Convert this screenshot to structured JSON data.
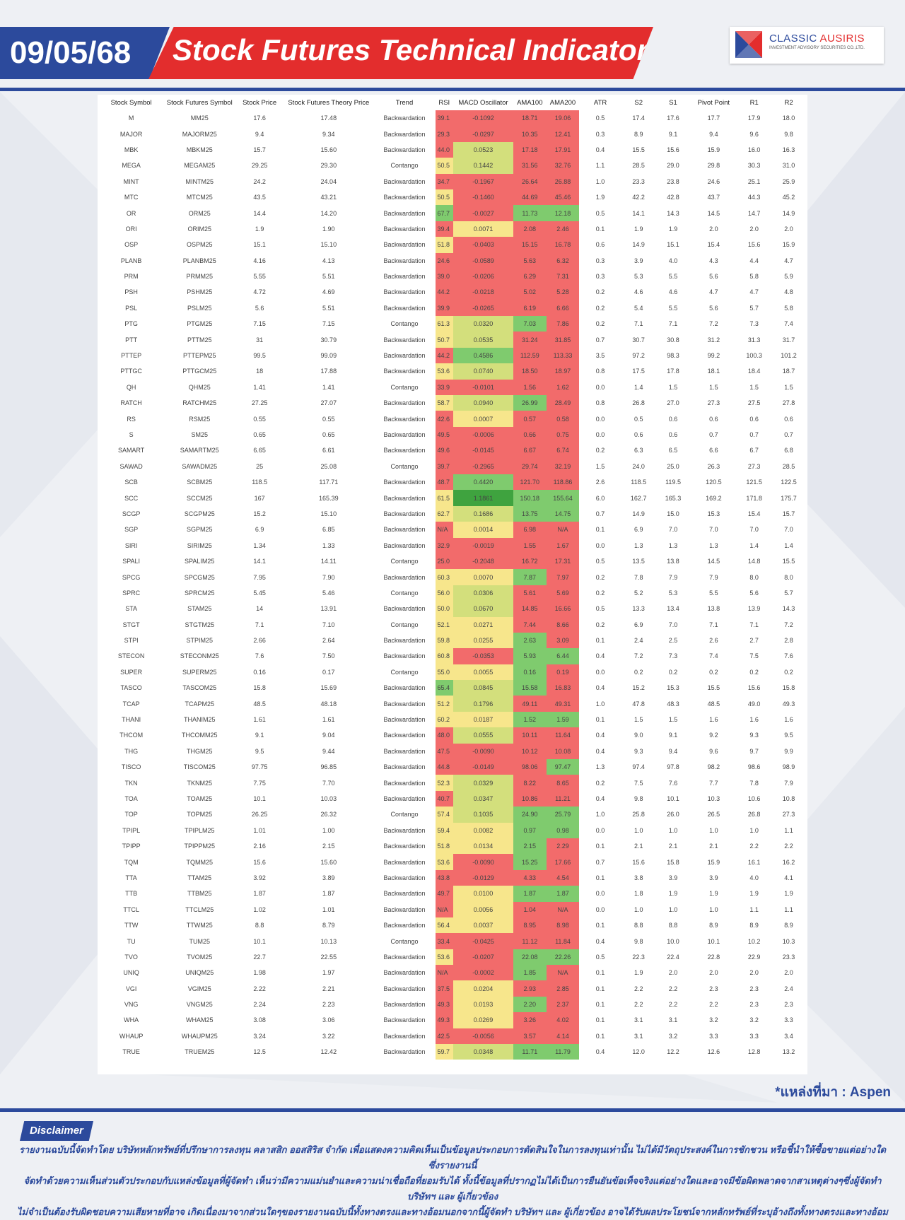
{
  "header": {
    "date": "09/05/68",
    "title": "Stock Futures Technical Indicator",
    "logo_name_a": "CLASSIC ",
    "logo_name_b": "AUSIRIS",
    "logo_sub": "INVESTMENT ADVISORY SECURITIES CO.,LTD."
  },
  "colors": {
    "brand_blue": "#2c4a9c",
    "brand_red": "#e32d2d",
    "cell_red": "#f26b6b",
    "cell_yellow": "#f7e68c",
    "cell_lime": "#d3df7c",
    "cell_green": "#7fcb6e",
    "cell_dark_green": "#3fa33f"
  },
  "table": {
    "columns": [
      "Stock Symbol",
      "Stock Futures Symbol",
      "Stock Price",
      "Stock Futures Theory Price",
      "Trend",
      "RSI",
      "MACD Oscillator",
      "AMA100",
      "AMA200",
      "ATR",
      "S2",
      "S1",
      "Pivot Point",
      "R1",
      "R2"
    ],
    "rows": [
      [
        "M",
        "MM25",
        "17.6",
        "17.48",
        "Backwardation",
        "39.1",
        "-0.1092",
        "18.71",
        "19.06",
        "0.5",
        "17.4",
        "17.6",
        "17.7",
        "17.9",
        "18.0"
      ],
      [
        "MAJOR",
        "MAJORM25",
        "9.4",
        "9.34",
        "Backwardation",
        "29.3",
        "-0.0297",
        "10.35",
        "12.41",
        "0.3",
        "8.9",
        "9.1",
        "9.4",
        "9.6",
        "9.8"
      ],
      [
        "MBK",
        "MBKM25",
        "15.7",
        "15.60",
        "Backwardation",
        "44.0",
        "0.0523",
        "17.18",
        "17.91",
        "0.4",
        "15.5",
        "15.6",
        "15.9",
        "16.0",
        "16.3"
      ],
      [
        "MEGA",
        "MEGAM25",
        "29.25",
        "29.30",
        "Contango",
        "50.5",
        "0.1442",
        "31.56",
        "32.76",
        "1.1",
        "28.5",
        "29.0",
        "29.8",
        "30.3",
        "31.0"
      ],
      [
        "MINT",
        "MINTM25",
        "24.2",
        "24.04",
        "Backwardation",
        "34.7",
        "-0.1967",
        "26.64",
        "26.88",
        "1.0",
        "23.3",
        "23.8",
        "24.6",
        "25.1",
        "25.9"
      ],
      [
        "MTC",
        "MTCM25",
        "43.5",
        "43.21",
        "Backwardation",
        "50.5",
        "-0.1460",
        "44.69",
        "45.46",
        "1.9",
        "42.2",
        "42.8",
        "43.7",
        "44.3",
        "45.2"
      ],
      [
        "OR",
        "ORM25",
        "14.4",
        "14.20",
        "Backwardation",
        "67.7",
        "-0.0027",
        "11.73",
        "12.18",
        "0.5",
        "14.1",
        "14.3",
        "14.5",
        "14.7",
        "14.9"
      ],
      [
        "ORI",
        "ORIM25",
        "1.9",
        "1.90",
        "Backwardation",
        "39.4",
        "0.0071",
        "2.08",
        "2.46",
        "0.1",
        "1.9",
        "1.9",
        "2.0",
        "2.0",
        "2.0"
      ],
      [
        "OSP",
        "OSPM25",
        "15.1",
        "15.10",
        "Backwardation",
        "51.8",
        "-0.0403",
        "15.15",
        "16.78",
        "0.6",
        "14.9",
        "15.1",
        "15.4",
        "15.6",
        "15.9"
      ],
      [
        "PLANB",
        "PLANBM25",
        "4.16",
        "4.13",
        "Backwardation",
        "24.6",
        "-0.0589",
        "5.63",
        "6.32",
        "0.3",
        "3.9",
        "4.0",
        "4.3",
        "4.4",
        "4.7"
      ],
      [
        "PRM",
        "PRMM25",
        "5.55",
        "5.51",
        "Backwardation",
        "39.0",
        "-0.0206",
        "6.29",
        "7.31",
        "0.3",
        "5.3",
        "5.5",
        "5.6",
        "5.8",
        "5.9"
      ],
      [
        "PSH",
        "PSHM25",
        "4.72",
        "4.69",
        "Backwardation",
        "44.2",
        "-0.0218",
        "5.02",
        "5.28",
        "0.2",
        "4.6",
        "4.6",
        "4.7",
        "4.7",
        "4.8"
      ],
      [
        "PSL",
        "PSLM25",
        "5.6",
        "5.51",
        "Backwardation",
        "39.9",
        "-0.0265",
        "6.19",
        "6.66",
        "0.2",
        "5.4",
        "5.5",
        "5.6",
        "5.7",
        "5.8"
      ],
      [
        "PTG",
        "PTGM25",
        "7.15",
        "7.15",
        "Contango",
        "61.3",
        "0.0320",
        "7.03",
        "7.86",
        "0.2",
        "7.1",
        "7.1",
        "7.2",
        "7.3",
        "7.4"
      ],
      [
        "PTT",
        "PTTM25",
        "31",
        "30.79",
        "Backwardation",
        "50.7",
        "0.0535",
        "31.24",
        "31.85",
        "0.7",
        "30.7",
        "30.8",
        "31.2",
        "31.3",
        "31.7"
      ],
      [
        "PTTEP",
        "PTTEPM25",
        "99.5",
        "99.09",
        "Backwardation",
        "44.2",
        "0.4586",
        "112.59",
        "113.33",
        "3.5",
        "97.2",
        "98.3",
        "99.2",
        "100.3",
        "101.2"
      ],
      [
        "PTTGC",
        "PTTGCM25",
        "18",
        "17.88",
        "Backwardation",
        "53.6",
        "0.0740",
        "18.50",
        "18.97",
        "0.8",
        "17.5",
        "17.8",
        "18.1",
        "18.4",
        "18.7"
      ],
      [
        "QH",
        "QHM25",
        "1.41",
        "1.41",
        "Contango",
        "33.9",
        "-0.0101",
        "1.56",
        "1.62",
        "0.0",
        "1.4",
        "1.5",
        "1.5",
        "1.5",
        "1.5"
      ],
      [
        "RATCH",
        "RATCHM25",
        "27.25",
        "27.07",
        "Backwardation",
        "58.7",
        "0.0940",
        "26.99",
        "28.49",
        "0.8",
        "26.8",
        "27.0",
        "27.3",
        "27.5",
        "27.8"
      ],
      [
        "RS",
        "RSM25",
        "0.55",
        "0.55",
        "Backwardation",
        "42.6",
        "0.0007",
        "0.57",
        "0.58",
        "0.0",
        "0.5",
        "0.6",
        "0.6",
        "0.6",
        "0.6"
      ],
      [
        "S",
        "SM25",
        "0.65",
        "0.65",
        "Backwardation",
        "49.5",
        "-0.0006",
        "0.66",
        "0.75",
        "0.0",
        "0.6",
        "0.6",
        "0.7",
        "0.7",
        "0.7"
      ],
      [
        "SAMART",
        "SAMARTM25",
        "6.65",
        "6.61",
        "Backwardation",
        "49.6",
        "-0.0145",
        "6.67",
        "6.74",
        "0.2",
        "6.3",
        "6.5",
        "6.6",
        "6.7",
        "6.8"
      ],
      [
        "SAWAD",
        "SAWADM25",
        "25",
        "25.08",
        "Contango",
        "39.7",
        "-0.2965",
        "29.74",
        "32.19",
        "1.5",
        "24.0",
        "25.0",
        "26.3",
        "27.3",
        "28.5"
      ],
      [
        "SCB",
        "SCBM25",
        "118.5",
        "117.71",
        "Backwardation",
        "48.7",
        "0.4420",
        "121.70",
        "118.86",
        "2.6",
        "118.5",
        "119.5",
        "120.5",
        "121.5",
        "122.5"
      ],
      [
        "SCC",
        "SCCM25",
        "167",
        "165.39",
        "Backwardation",
        "61.5",
        "1.1861",
        "150.18",
        "155.64",
        "6.0",
        "162.7",
        "165.3",
        "169.2",
        "171.8",
        "175.7"
      ],
      [
        "SCGP",
        "SCGPM25",
        "15.2",
        "15.10",
        "Backwardation",
        "62.7",
        "0.1686",
        "13.75",
        "14.75",
        "0.7",
        "14.9",
        "15.0",
        "15.3",
        "15.4",
        "15.7"
      ],
      [
        "SGP",
        "SGPM25",
        "6.9",
        "6.85",
        "Backwardation",
        "N/A",
        "0.0014",
        "6.98",
        "N/A",
        "0.1",
        "6.9",
        "7.0",
        "7.0",
        "7.0",
        "7.0"
      ],
      [
        "SIRI",
        "SIRIM25",
        "1.34",
        "1.33",
        "Backwardation",
        "32.9",
        "-0.0019",
        "1.55",
        "1.67",
        "0.0",
        "1.3",
        "1.3",
        "1.3",
        "1.4",
        "1.4"
      ],
      [
        "SPALI",
        "SPALIM25",
        "14.1",
        "14.11",
        "Contango",
        "25.0",
        "-0.2048",
        "16.72",
        "17.31",
        "0.5",
        "13.5",
        "13.8",
        "14.5",
        "14.8",
        "15.5"
      ],
      [
        "SPCG",
        "SPCGM25",
        "7.95",
        "7.90",
        "Backwardation",
        "60.3",
        "0.0070",
        "7.87",
        "7.97",
        "0.2",
        "7.8",
        "7.9",
        "7.9",
        "8.0",
        "8.0"
      ],
      [
        "SPRC",
        "SPRCM25",
        "5.45",
        "5.46",
        "Contango",
        "56.0",
        "0.0306",
        "5.61",
        "5.69",
        "0.2",
        "5.2",
        "5.3",
        "5.5",
        "5.6",
        "5.7"
      ],
      [
        "STA",
        "STAM25",
        "14",
        "13.91",
        "Backwardation",
        "50.0",
        "0.0670",
        "14.85",
        "16.66",
        "0.5",
        "13.3",
        "13.4",
        "13.8",
        "13.9",
        "14.3"
      ],
      [
        "STGT",
        "STGTM25",
        "7.1",
        "7.10",
        "Contango",
        "52.1",
        "0.0271",
        "7.44",
        "8.66",
        "0.2",
        "6.9",
        "7.0",
        "7.1",
        "7.1",
        "7.2"
      ],
      [
        "STPI",
        "STPIM25",
        "2.66",
        "2.64",
        "Backwardation",
        "59.8",
        "0.0255",
        "2.63",
        "3.09",
        "0.1",
        "2.4",
        "2.5",
        "2.6",
        "2.7",
        "2.8"
      ],
      [
        "STECON",
        "STECONM25",
        "7.6",
        "7.50",
        "Backwardation",
        "60.8",
        "-0.0353",
        "5.93",
        "6.44",
        "0.4",
        "7.2",
        "7.3",
        "7.4",
        "7.5",
        "7.6"
      ],
      [
        "SUPER",
        "SUPERM25",
        "0.16",
        "0.17",
        "Contango",
        "55.0",
        "0.0055",
        "0.16",
        "0.19",
        "0.0",
        "0.2",
        "0.2",
        "0.2",
        "0.2",
        "0.2"
      ],
      [
        "TASCO",
        "TASCOM25",
        "15.8",
        "15.69",
        "Backwardation",
        "65.4",
        "0.0845",
        "15.58",
        "16.83",
        "0.4",
        "15.2",
        "15.3",
        "15.5",
        "15.6",
        "15.8"
      ],
      [
        "TCAP",
        "TCAPM25",
        "48.5",
        "48.18",
        "Backwardation",
        "51.2",
        "0.1796",
        "49.11",
        "49.31",
        "1.0",
        "47.8",
        "48.3",
        "48.5",
        "49.0",
        "49.3"
      ],
      [
        "THANI",
        "THANIM25",
        "1.61",
        "1.61",
        "Backwardation",
        "60.2",
        "0.0187",
        "1.52",
        "1.59",
        "0.1",
        "1.5",
        "1.5",
        "1.6",
        "1.6",
        "1.6"
      ],
      [
        "THCOM",
        "THCOMM25",
        "9.1",
        "9.04",
        "Backwardation",
        "48.0",
        "0.0555",
        "10.11",
        "11.64",
        "0.4",
        "9.0",
        "9.1",
        "9.2",
        "9.3",
        "9.5"
      ],
      [
        "THG",
        "THGM25",
        "9.5",
        "9.44",
        "Backwardation",
        "47.5",
        "-0.0090",
        "10.12",
        "10.08",
        "0.4",
        "9.3",
        "9.4",
        "9.6",
        "9.7",
        "9.9"
      ],
      [
        "TISCO",
        "TISCOM25",
        "97.75",
        "96.85",
        "Backwardation",
        "44.8",
        "-0.0149",
        "98.06",
        "97.47",
        "1.3",
        "97.4",
        "97.8",
        "98.2",
        "98.6",
        "98.9"
      ],
      [
        "TKN",
        "TKNM25",
        "7.75",
        "7.70",
        "Backwardation",
        "52.3",
        "0.0329",
        "8.22",
        "8.65",
        "0.2",
        "7.5",
        "7.6",
        "7.7",
        "7.8",
        "7.9"
      ],
      [
        "TOA",
        "TOAM25",
        "10.1",
        "10.03",
        "Backwardation",
        "40.7",
        "0.0347",
        "10.86",
        "11.21",
        "0.4",
        "9.8",
        "10.1",
        "10.3",
        "10.6",
        "10.8"
      ],
      [
        "TOP",
        "TOPM25",
        "26.25",
        "26.32",
        "Contango",
        "57.4",
        "0.1035",
        "24.90",
        "25.79",
        "1.0",
        "25.8",
        "26.0",
        "26.5",
        "26.8",
        "27.3"
      ],
      [
        "TPIPL",
        "TPIPLM25",
        "1.01",
        "1.00",
        "Backwardation",
        "59.4",
        "0.0082",
        "0.97",
        "0.98",
        "0.0",
        "1.0",
        "1.0",
        "1.0",
        "1.0",
        "1.1"
      ],
      [
        "TPIPP",
        "TPIPPM25",
        "2.16",
        "2.15",
        "Backwardation",
        "51.8",
        "0.0134",
        "2.15",
        "2.29",
        "0.1",
        "2.1",
        "2.1",
        "2.1",
        "2.2",
        "2.2"
      ],
      [
        "TQM",
        "TQMM25",
        "15.6",
        "15.60",
        "Backwardation",
        "53.6",
        "-0.0090",
        "15.25",
        "17.66",
        "0.7",
        "15.6",
        "15.8",
        "15.9",
        "16.1",
        "16.2"
      ],
      [
        "TTA",
        "TTAM25",
        "3.92",
        "3.89",
        "Backwardation",
        "43.8",
        "-0.0129",
        "4.33",
        "4.54",
        "0.1",
        "3.8",
        "3.9",
        "3.9",
        "4.0",
        "4.1"
      ],
      [
        "TTB",
        "TTBM25",
        "1.87",
        "1.87",
        "Backwardation",
        "49.7",
        "0.0100",
        "1.87",
        "1.87",
        "0.0",
        "1.8",
        "1.9",
        "1.9",
        "1.9",
        "1.9"
      ],
      [
        "TTCL",
        "TTCLM25",
        "1.02",
        "1.01",
        "Backwardation",
        "N/A",
        "0.0056",
        "1.04",
        "N/A",
        "0.0",
        "1.0",
        "1.0",
        "1.0",
        "1.1",
        "1.1"
      ],
      [
        "TTW",
        "TTWM25",
        "8.8",
        "8.79",
        "Backwardation",
        "56.4",
        "0.0037",
        "8.95",
        "8.98",
        "0.1",
        "8.8",
        "8.8",
        "8.9",
        "8.9",
        "8.9"
      ],
      [
        "TU",
        "TUM25",
        "10.1",
        "10.13",
        "Contango",
        "33.4",
        "-0.0425",
        "11.12",
        "11.84",
        "0.4",
        "9.8",
        "10.0",
        "10.1",
        "10.2",
        "10.3"
      ],
      [
        "TVO",
        "TVOM25",
        "22.7",
        "22.55",
        "Backwardation",
        "53.6",
        "-0.0207",
        "22.08",
        "22.26",
        "0.5",
        "22.3",
        "22.4",
        "22.8",
        "22.9",
        "23.3"
      ],
      [
        "UNIQ",
        "UNIQM25",
        "1.98",
        "1.97",
        "Backwardation",
        "N/A",
        "-0.0002",
        "1.85",
        "N/A",
        "0.1",
        "1.9",
        "2.0",
        "2.0",
        "2.0",
        "2.0"
      ],
      [
        "VGI",
        "VGIM25",
        "2.22",
        "2.21",
        "Backwardation",
        "37.5",
        "0.0204",
        "2.93",
        "2.85",
        "0.1",
        "2.2",
        "2.2",
        "2.3",
        "2.3",
        "2.4"
      ],
      [
        "VNG",
        "VNGM25",
        "2.24",
        "2.23",
        "Backwardation",
        "49.3",
        "0.0193",
        "2.20",
        "2.37",
        "0.1",
        "2.2",
        "2.2",
        "2.2",
        "2.3",
        "2.3"
      ],
      [
        "WHA",
        "WHAM25",
        "3.08",
        "3.06",
        "Backwardation",
        "49.3",
        "0.0269",
        "3.26",
        "4.02",
        "0.1",
        "3.1",
        "3.1",
        "3.2",
        "3.2",
        "3.3"
      ],
      [
        "WHAUP",
        "WHAUPM25",
        "3.24",
        "3.22",
        "Backwardation",
        "42.5",
        "-0.0056",
        "3.57",
        "4.14",
        "0.1",
        "3.1",
        "3.2",
        "3.3",
        "3.3",
        "3.4"
      ],
      [
        "TRUE",
        "TRUEM25",
        "12.5",
        "12.42",
        "Backwardation",
        "59.7",
        "0.0348",
        "11.71",
        "11.79",
        "0.4",
        "12.0",
        "12.2",
        "12.6",
        "12.8",
        "13.2"
      ]
    ]
  },
  "source": "*แหล่งที่มา : Aspen",
  "disclaimer": {
    "title": "Disclaimer",
    "lines": [
      "รายงานฉบับนี้จัดทำโดย บริษัทหลักทรัพย์ที่ปรึกษาการลงทุน คลาสสิก ออสสิริส จำกัด  เพื่อแสดงความคิดเห็นเป็นข้อมูลประกอบการตัดสินใจในการลงทุนเท่านั้น ไม่ได้มีวัตถุประสงค์ในการชักชวน หรือชี้นำให้ซื้อขายแต่อย่างใดซึ่งรายงานนี้",
      "จัดทำด้วยความเห็นส่วนตัวประกอบกับแหล่งข้อมูลที่ผู้จัดทำ เห็นว่ามีความแม่นยำและความน่าเชื่อถือที่ยอมรับได้  ทั้งนี้ข้อมูลที่ปรากฏไม่ได้เป็นการยืนยันข้อเท็จจริงแต่อย่างใดและอาจมีข้อผิดพลาดจากสาเหตุต่างๆซึ่งผู้จัดทำ  บริษัทฯ  และ  ผู้เกี่ยวข้อง",
      "ไม่จำเป็นต้องรับผิดชอบความเสียหายที่อาจ เกิดเนื่องมาจากส่วนใดๆของรายงานฉบับนี้ทั้งทางตรงและทางอ้อมนอกจากนี้ผู้จัดทำ บริษัทฯ และ ผู้เกี่ยวข้อง  อาจได้รับผลประโยชน์จากหลักทรัพย์ที่ระบุอ้างถึงทั้งทางตรงและทางอ้อม"
    ]
  }
}
